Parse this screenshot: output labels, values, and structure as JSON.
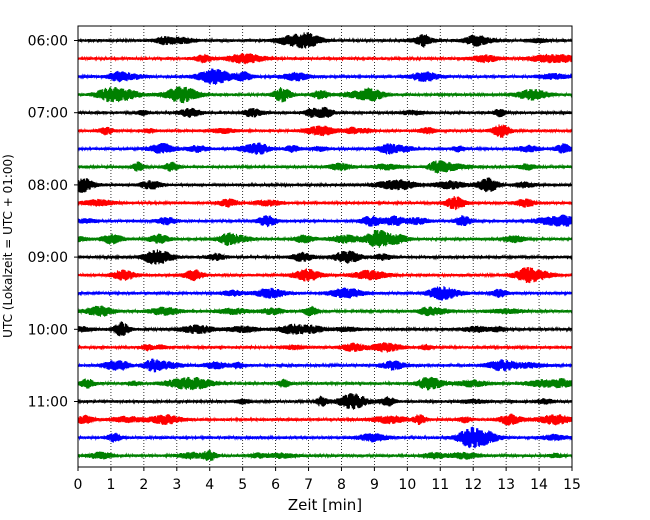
{
  "chart_data": {
    "type": "line",
    "subtype": "helicorder (seismogram drum plot)",
    "title": "",
    "xlabel": "Zeit  [min]",
    "ylabel": "UTC (Lokalzeit = UTC + 01:00)",
    "xlim": [
      0,
      15
    ],
    "x_ticks": [
      0,
      1,
      2,
      3,
      4,
      5,
      6,
      7,
      8,
      9,
      10,
      11,
      12,
      13,
      14,
      15
    ],
    "x_tick_labels": [
      "0",
      "1",
      "2",
      "3",
      "4",
      "5",
      "6",
      "7",
      "8",
      "9",
      "10",
      "11",
      "12",
      "13",
      "14",
      "15"
    ],
    "y_ticks": [
      "06:00",
      "07:00",
      "08:00",
      "09:00",
      "10:00",
      "11:00"
    ],
    "minutes_per_row": 15,
    "rows_per_hour": 4,
    "row_count": 24,
    "start_time": "06:00",
    "grid": {
      "vertical_dotted": true,
      "horizontal": false
    },
    "trace_colors": [
      "#000000",
      "#ff0000",
      "#0000ff",
      "#008000"
    ],
    "rows": [
      {
        "start": "06:00",
        "color": "#000000"
      },
      {
        "start": "06:15",
        "color": "#ff0000"
      },
      {
        "start": "06:30",
        "color": "#0000ff"
      },
      {
        "start": "06:45",
        "color": "#008000"
      },
      {
        "start": "07:00",
        "color": "#000000"
      },
      {
        "start": "07:15",
        "color": "#ff0000"
      },
      {
        "start": "07:30",
        "color": "#0000ff"
      },
      {
        "start": "07:45",
        "color": "#008000"
      },
      {
        "start": "08:00",
        "color": "#000000"
      },
      {
        "start": "08:15",
        "color": "#ff0000"
      },
      {
        "start": "08:30",
        "color": "#0000ff"
      },
      {
        "start": "08:45",
        "color": "#008000"
      },
      {
        "start": "09:00",
        "color": "#000000"
      },
      {
        "start": "09:15",
        "color": "#ff0000"
      },
      {
        "start": "09:30",
        "color": "#0000ff"
      },
      {
        "start": "09:45",
        "color": "#008000"
      },
      {
        "start": "10:00",
        "color": "#000000"
      },
      {
        "start": "10:15",
        "color": "#ff0000"
      },
      {
        "start": "10:30",
        "color": "#0000ff"
      },
      {
        "start": "10:45",
        "color": "#008000"
      },
      {
        "start": "11:00",
        "color": "#000000"
      },
      {
        "start": "11:15",
        "color": "#ff0000"
      },
      {
        "start": "11:30",
        "color": "#0000ff"
      },
      {
        "start": "11:45",
        "color": "#008000"
      }
    ]
  }
}
